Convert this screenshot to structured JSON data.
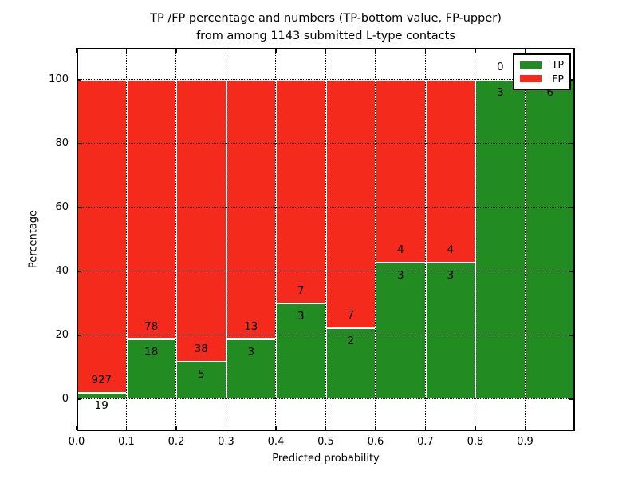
{
  "chart_data": {
    "type": "bar",
    "stacked": true,
    "normalized_to_percent": true,
    "title_line1": "TP /FP percentage and numbers (TP-bottom value, FP-upper)",
    "title_line2": "from among 1143 submitted L-type contacts",
    "title": "TP /FP percentage and numbers (TP-bottom value, FP-upper)\nfrom among 1143 submitted L-type contacts",
    "xlabel": "Predicted probability",
    "ylabel": "Percentage",
    "xlim": [
      0.0,
      1.0
    ],
    "ylim": [
      -10,
      110
    ],
    "grid": "dotted",
    "bin_width": 0.1,
    "bin_starts": [
      0.0,
      0.1,
      0.2,
      0.3,
      0.4,
      0.5,
      0.6,
      0.7,
      0.8,
      0.9
    ],
    "x_tick_labels": [
      "0.0",
      "0.1",
      "0.2",
      "0.3",
      "0.4",
      "0.5",
      "0.6",
      "0.7",
      "0.8",
      "0.9"
    ],
    "y_tick_values": [
      0,
      20,
      40,
      60,
      80,
      100
    ],
    "y_tick_labels": [
      "0",
      "20",
      "40",
      "60",
      "80",
      "100"
    ],
    "total_contacts": 1143,
    "series": [
      {
        "name": "TP",
        "color": "#228b22",
        "counts": [
          19,
          18,
          5,
          3,
          3,
          2,
          3,
          3,
          3,
          6
        ]
      },
      {
        "name": "FP",
        "color": "#f42a1d",
        "counts": [
          927,
          78,
          38,
          13,
          7,
          7,
          4,
          4,
          0,
          0
        ]
      }
    ],
    "tp_percent_by_bin": [
      2.0,
      18.8,
      11.6,
      18.8,
      30.0,
      22.2,
      42.9,
      42.9,
      100.0,
      100.0
    ],
    "legend": {
      "position": "upper right",
      "entries": [
        {
          "label": "TP",
          "color": "#228b22"
        },
        {
          "label": "FP",
          "color": "#f42a1d"
        }
      ]
    }
  }
}
